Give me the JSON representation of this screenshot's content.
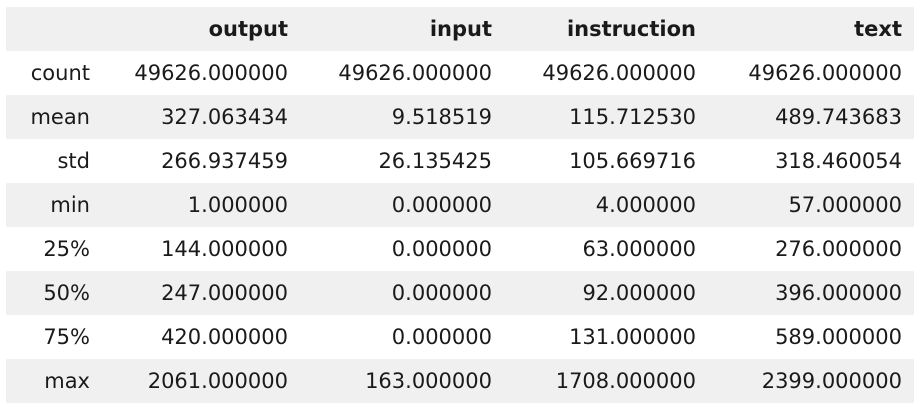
{
  "table": {
    "corner": "",
    "columns": [
      "output",
      "input",
      "instruction",
      "text"
    ],
    "rows": [
      {
        "label": "count",
        "values": [
          "49626.000000",
          "49626.000000",
          "49626.000000",
          "49626.000000"
        ]
      },
      {
        "label": "mean",
        "values": [
          "327.063434",
          "9.518519",
          "115.712530",
          "489.743683"
        ]
      },
      {
        "label": "std",
        "values": [
          "266.937459",
          "26.135425",
          "105.669716",
          "318.460054"
        ]
      },
      {
        "label": "min",
        "values": [
          "1.000000",
          "0.000000",
          "4.000000",
          "57.000000"
        ]
      },
      {
        "label": "25%",
        "values": [
          "144.000000",
          "0.000000",
          "63.000000",
          "276.000000"
        ]
      },
      {
        "label": "50%",
        "values": [
          "247.000000",
          "0.000000",
          "92.000000",
          "396.000000"
        ]
      },
      {
        "label": "75%",
        "values": [
          "420.000000",
          "0.000000",
          "131.000000",
          "589.000000"
        ]
      },
      {
        "label": "max",
        "values": [
          "2061.000000",
          "163.000000",
          "1708.000000",
          "2399.000000"
        ]
      }
    ]
  }
}
